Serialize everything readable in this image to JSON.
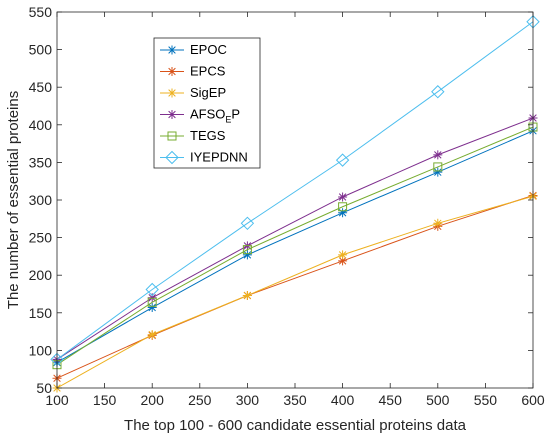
{
  "chart_data": {
    "type": "line",
    "title": "",
    "xlabel": "The top 100 - 600 candidate essential proteins data",
    "ylabel": "The number of essential proteins",
    "xlim": [
      100,
      600
    ],
    "ylim": [
      50,
      550
    ],
    "x_ticks": [
      100,
      150,
      200,
      250,
      300,
      350,
      400,
      450,
      500,
      550,
      600
    ],
    "y_ticks": [
      50,
      100,
      150,
      200,
      250,
      300,
      350,
      400,
      450,
      500,
      550
    ],
    "grid": false,
    "legend_position": "top-left",
    "x": [
      100,
      200,
      300,
      400,
      500,
      600
    ],
    "series": [
      {
        "name": "EPOC",
        "name_main": "EPOC",
        "name_sub": "",
        "name_tail": "",
        "marker": "asterisk",
        "color": "#0072BD",
        "values": [
          84,
          157,
          227,
          283,
          337,
          392
        ]
      },
      {
        "name": "EPCS",
        "name_main": "EPCS",
        "name_sub": "",
        "name_tail": "",
        "marker": "asterisk",
        "color": "#D95319",
        "values": [
          63,
          120,
          173,
          219,
          265,
          306
        ]
      },
      {
        "name": "SigEP",
        "name_main": "SigEP",
        "name_sub": "",
        "name_tail": "",
        "marker": "asterisk",
        "color": "#EDB120",
        "values": [
          50,
          121,
          173,
          227,
          269,
          305
        ]
      },
      {
        "name": "AFSO_EP",
        "name_main": "AFSO",
        "name_sub": "E",
        "name_tail": "P",
        "marker": "asterisk",
        "color": "#7E2F8E",
        "values": [
          88,
          170,
          239,
          304,
          360,
          409
        ]
      },
      {
        "name": "TEGS",
        "name_main": "TEGS",
        "name_sub": "",
        "name_tail": "",
        "marker": "square",
        "color": "#77AC30",
        "values": [
          81,
          164,
          234,
          291,
          344,
          397
        ]
      },
      {
        "name": "IYEPDNN",
        "name_main": "IYEPDNN",
        "name_sub": "",
        "name_tail": "",
        "marker": "diamond",
        "color": "#4DBEEE",
        "values": [
          88,
          181,
          269,
          353,
          444,
          537
        ]
      }
    ]
  }
}
